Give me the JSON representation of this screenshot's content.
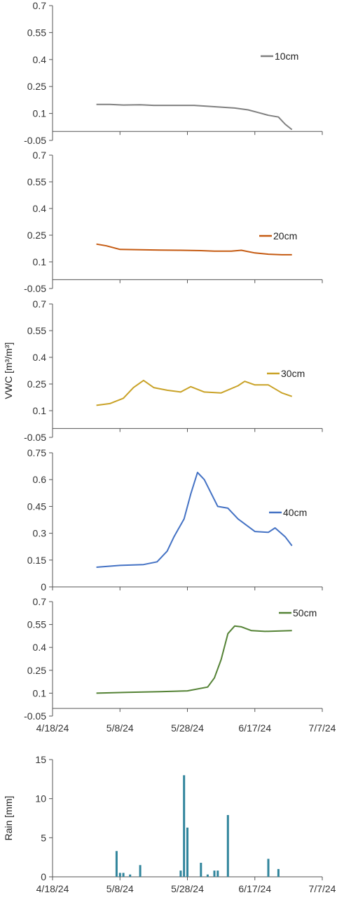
{
  "chart_data": [
    {
      "type": "line",
      "ylabel": "",
      "ylim": [
        -0.05,
        0.7
      ],
      "yticks": [
        "0.7",
        "0.55",
        "0.4",
        "0.25",
        "0.1",
        "-0.05"
      ],
      "legend": "10cm",
      "color": "#808080",
      "series": [
        {
          "name": "10cm",
          "x": [
            "5/1/24",
            "5/5/24",
            "5/9/24",
            "5/14/24",
            "5/18/24",
            "5/22/24",
            "5/26/24",
            "5/30/24",
            "6/3/24",
            "6/7/24",
            "6/11/24",
            "6/15/24",
            "6/18/24",
            "6/21/24",
            "6/24/24",
            "6/26/24",
            "6/28/24"
          ],
          "values": [
            0.15,
            0.15,
            0.147,
            0.148,
            0.145,
            0.145,
            0.145,
            0.145,
            0.14,
            0.135,
            0.13,
            0.12,
            0.105,
            0.09,
            0.08,
            0.04,
            0.01
          ]
        }
      ]
    },
    {
      "type": "line",
      "ylabel": "",
      "ylim": [
        -0.05,
        0.7
      ],
      "yticks": [
        "0.7",
        "0.55",
        "0.4",
        "0.25",
        "0.1",
        "-0.05"
      ],
      "legend": "20cm",
      "color": "#c55a11",
      "series": [
        {
          "name": "20cm",
          "x": [
            "5/1/24",
            "5/4/24",
            "5/8/24",
            "5/14/24",
            "5/20/24",
            "5/26/24",
            "6/1/24",
            "6/5/24",
            "6/10/24",
            "6/13/24",
            "6/17/24",
            "6/21/24",
            "6/25/24",
            "6/28/24"
          ],
          "values": [
            0.2,
            0.19,
            0.17,
            0.168,
            0.166,
            0.165,
            0.163,
            0.16,
            0.16,
            0.165,
            0.15,
            0.143,
            0.14,
            0.14
          ]
        }
      ]
    },
    {
      "type": "line",
      "ylabel": "VWC [m³/m³]",
      "ylim": [
        -0.05,
        0.7
      ],
      "yticks": [
        "0.7",
        "0.55",
        "0.4",
        "0.25",
        "0.1",
        "-0.05"
      ],
      "legend": "30cm",
      "color": "#c9a227",
      "series": [
        {
          "name": "30cm",
          "x": [
            "5/1/24",
            "5/5/24",
            "5/9/24",
            "5/12/24",
            "5/15/24",
            "5/18/24",
            "5/22/24",
            "5/26/24",
            "5/29/24",
            "6/2/24",
            "6/7/24",
            "6/12/24",
            "6/14/24",
            "6/17/24",
            "6/21/24",
            "6/25/24",
            "6/28/24"
          ],
          "values": [
            0.13,
            0.14,
            0.17,
            0.23,
            0.27,
            0.23,
            0.215,
            0.205,
            0.235,
            0.205,
            0.2,
            0.24,
            0.265,
            0.245,
            0.245,
            0.2,
            0.18
          ]
        }
      ]
    },
    {
      "type": "line",
      "ylabel": "",
      "ylim": [
        0,
        0.75
      ],
      "yticks": [
        "0.75",
        "0.6",
        "0.45",
        "0.3",
        "0.15",
        "0"
      ],
      "legend": "40cm",
      "color": "#4472c4",
      "series": [
        {
          "name": "40cm",
          "x": [
            "5/1/24",
            "5/8/24",
            "5/15/24",
            "5/19/24",
            "5/22/24",
            "5/24/24",
            "5/27/24",
            "5/29/24",
            "5/31/24",
            "6/2/24",
            "6/6/24",
            "6/9/24",
            "6/12/24",
            "6/17/24",
            "6/21/24",
            "6/23/24",
            "6/26/24",
            "6/28/24"
          ],
          "values": [
            0.11,
            0.12,
            0.125,
            0.14,
            0.2,
            0.28,
            0.38,
            0.52,
            0.64,
            0.6,
            0.45,
            0.44,
            0.38,
            0.31,
            0.305,
            0.33,
            0.28,
            0.23
          ]
        }
      ]
    },
    {
      "type": "line",
      "ylabel": "",
      "ylim": [
        -0.05,
        0.7
      ],
      "yticks": [
        "0.7",
        "0.55",
        "0.4",
        "0.25",
        "0.1",
        "-0.05"
      ],
      "legend": "50cm",
      "color": "#548235",
      "series": [
        {
          "name": "50cm",
          "x": [
            "5/1/24",
            "5/10/24",
            "5/20/24",
            "5/28/24",
            "6/3/24",
            "6/5/24",
            "6/7/24",
            "6/9/24",
            "6/11/24",
            "6/13/24",
            "6/16/24",
            "6/20/24",
            "6/28/24"
          ],
          "values": [
            0.1,
            0.105,
            0.11,
            0.115,
            0.14,
            0.2,
            0.32,
            0.49,
            0.54,
            0.535,
            0.51,
            0.505,
            0.51
          ]
        }
      ]
    },
    {
      "type": "bar",
      "ylabel": "Rain [mm]",
      "ylim": [
        0,
        15
      ],
      "yticks": [
        "15",
        "10",
        "5",
        "0"
      ],
      "color": "#31859c",
      "x": [
        "5/7/24",
        "5/8/24",
        "5/9/24",
        "5/11/24",
        "5/14/24",
        "5/26/24",
        "5/27/24",
        "5/28/24",
        "6/1/24",
        "6/3/24",
        "6/5/24",
        "6/6/24",
        "6/9/24",
        "6/21/24",
        "6/24/24"
      ],
      "values": [
        3.3,
        0.5,
        0.5,
        0.3,
        1.5,
        0.8,
        13,
        6.3,
        1.8,
        0.3,
        0.8,
        0.8,
        7.9,
        2.3,
        1.0
      ]
    }
  ],
  "x_axis": {
    "range": [
      "4/18/24",
      "7/7/24"
    ],
    "tick_labels": [
      "4/18/24",
      "5/8/24",
      "5/28/24",
      "6/17/24",
      "7/7/24"
    ]
  }
}
